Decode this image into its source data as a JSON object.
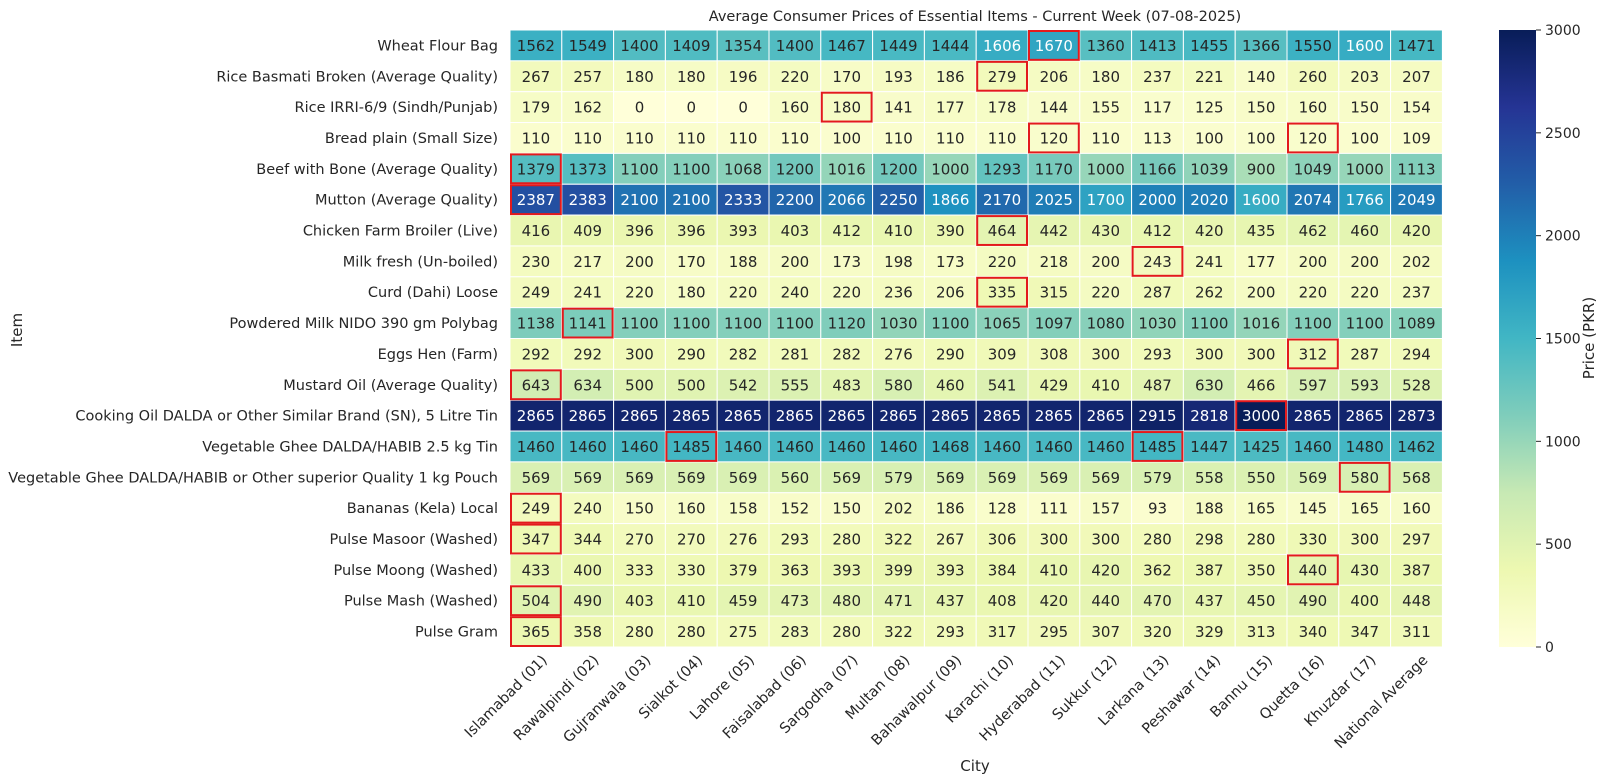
{
  "chart_data": {
    "type": "heatmap",
    "title": "Average Consumer Prices of Essential Items - Current Week (07-08-2025)",
    "xlabel": "City",
    "ylabel": "Item",
    "colorbar_label": "Price (PKR)",
    "color_range": [
      0,
      3000
    ],
    "colorbar_ticks": [
      0,
      500,
      1000,
      1500,
      2000,
      2500,
      3000
    ],
    "colormap": "YlGnBu",
    "highlight_color": "#e31a1c",
    "columns": [
      "Islamabad (01)",
      "Rawalpindi (02)",
      "Gujranwala (03)",
      "Sialkot (04)",
      "Lahore (05)",
      "Faisalabad (06)",
      "Sargodha (07)",
      "Multan (08)",
      "Bahawalpur (09)",
      "Karachi (10)",
      "Hyderabad (11)",
      "Sukkur (12)",
      "Larkana (13)",
      "Peshawar (14)",
      "Bannu (15)",
      "Quetta (16)",
      "Khuzdar (17)",
      "National Average"
    ],
    "rows": [
      {
        "item": "Wheat Flour Bag",
        "values": [
          1562,
          1549,
          1400,
          1409,
          1354,
          1400,
          1467,
          1449,
          1444,
          1606,
          1670,
          1360,
          1413,
          1455,
          1366,
          1550,
          1600,
          1471
        ],
        "highlighted_columns": [
          10
        ]
      },
      {
        "item": "Rice Basmati Broken (Average Quality)",
        "values": [
          267,
          257,
          180,
          180,
          196,
          220,
          170,
          193,
          186,
          279,
          206,
          180,
          237,
          221,
          140,
          260,
          203,
          207
        ],
        "highlighted_columns": [
          9
        ]
      },
      {
        "item": "Rice IRRI-6/9 (Sindh/Punjab)",
        "values": [
          179,
          162,
          0,
          0,
          0,
          160,
          180,
          141,
          177,
          178,
          144,
          155,
          117,
          125,
          150,
          160,
          150,
          154
        ],
        "highlighted_columns": [
          6
        ]
      },
      {
        "item": "Bread plain (Small Size)",
        "values": [
          110,
          110,
          110,
          110,
          110,
          110,
          100,
          110,
          110,
          110,
          120,
          110,
          113,
          100,
          100,
          120,
          100,
          109
        ],
        "highlighted_columns": [
          10,
          15
        ]
      },
      {
        "item": "Beef with Bone (Average Quality)",
        "values": [
          1379,
          1373,
          1100,
          1100,
          1068,
          1200,
          1016,
          1200,
          1000,
          1293,
          1170,
          1000,
          1166,
          1039,
          900,
          1049,
          1000,
          1113
        ],
        "highlighted_columns": [
          0
        ]
      },
      {
        "item": "Mutton (Average Quality)",
        "values": [
          2387,
          2383,
          2100,
          2100,
          2333,
          2200,
          2066,
          2250,
          1866,
          2170,
          2025,
          1700,
          2000,
          2020,
          1600,
          2074,
          1766,
          2049
        ],
        "highlighted_columns": [
          0
        ]
      },
      {
        "item": "Chicken Farm Broiler (Live)",
        "values": [
          416,
          409,
          396,
          396,
          393,
          403,
          412,
          410,
          390,
          464,
          442,
          430,
          412,
          420,
          435,
          462,
          460,
          420
        ],
        "highlighted_columns": [
          9
        ]
      },
      {
        "item": "Milk fresh (Un-boiled)",
        "values": [
          230,
          217,
          200,
          170,
          188,
          200,
          173,
          198,
          173,
          220,
          218,
          200,
          243,
          241,
          177,
          200,
          200,
          202
        ],
        "highlighted_columns": [
          12
        ]
      },
      {
        "item": "Curd (Dahi) Loose",
        "values": [
          249,
          241,
          220,
          180,
          220,
          240,
          220,
          236,
          206,
          335,
          315,
          220,
          287,
          262,
          200,
          220,
          220,
          237
        ],
        "highlighted_columns": [
          9
        ]
      },
      {
        "item": "Powdered Milk NIDO 390 gm Polybag",
        "values": [
          1138,
          1141,
          1100,
          1100,
          1100,
          1100,
          1120,
          1030,
          1100,
          1065,
          1097,
          1080,
          1030,
          1100,
          1016,
          1100,
          1100,
          1089
        ],
        "highlighted_columns": [
          1
        ]
      },
      {
        "item": "Eggs Hen (Farm)",
        "values": [
          292,
          292,
          300,
          290,
          282,
          281,
          282,
          276,
          290,
          309,
          308,
          300,
          293,
          300,
          300,
          312,
          287,
          294
        ],
        "highlighted_columns": [
          15
        ]
      },
      {
        "item": "Mustard Oil (Average Quality)",
        "values": [
          643,
          634,
          500,
          500,
          542,
          555,
          483,
          580,
          460,
          541,
          429,
          410,
          487,
          630,
          466,
          597,
          593,
          528
        ],
        "highlighted_columns": [
          0
        ]
      },
      {
        "item": "Cooking Oil DALDA or Other Similar Brand (SN), 5 Litre Tin",
        "values": [
          2865,
          2865,
          2865,
          2865,
          2865,
          2865,
          2865,
          2865,
          2865,
          2865,
          2865,
          2865,
          2915,
          2818,
          3000,
          2865,
          2865,
          2873
        ],
        "highlighted_columns": [
          14
        ]
      },
      {
        "item": "Vegetable Ghee DALDA/HABIB 2.5 kg Tin",
        "values": [
          1460,
          1460,
          1460,
          1485,
          1460,
          1460,
          1460,
          1460,
          1468,
          1460,
          1460,
          1460,
          1485,
          1447,
          1425,
          1460,
          1480,
          1462
        ],
        "highlighted_columns": [
          3,
          12
        ]
      },
      {
        "item": "Vegetable Ghee DALDA/HABIB or Other superior Quality 1 kg Pouch",
        "values": [
          569,
          569,
          569,
          569,
          569,
          560,
          569,
          579,
          569,
          569,
          569,
          569,
          579,
          558,
          550,
          569,
          580,
          568
        ],
        "highlighted_columns": [
          16
        ]
      },
      {
        "item": "Bananas (Kela) Local",
        "values": [
          249,
          240,
          150,
          160,
          158,
          152,
          150,
          202,
          186,
          128,
          111,
          157,
          93,
          188,
          165,
          145,
          165,
          160
        ],
        "highlighted_columns": [
          0
        ]
      },
      {
        "item": "Pulse Masoor (Washed)",
        "values": [
          347,
          344,
          270,
          270,
          276,
          293,
          280,
          322,
          267,
          306,
          300,
          300,
          280,
          298,
          280,
          330,
          300,
          297
        ],
        "highlighted_columns": [
          0
        ]
      },
      {
        "item": "Pulse Moong (Washed)",
        "values": [
          433,
          400,
          333,
          330,
          379,
          363,
          393,
          399,
          393,
          384,
          410,
          420,
          362,
          387,
          350,
          440,
          430,
          387
        ],
        "highlighted_columns": [
          15
        ]
      },
      {
        "item": "Pulse Mash (Washed)",
        "values": [
          504,
          490,
          403,
          410,
          459,
          473,
          480,
          471,
          437,
          408,
          420,
          440,
          470,
          437,
          450,
          490,
          400,
          448
        ],
        "highlighted_columns": [
          0
        ]
      },
      {
        "item": "Pulse Gram",
        "values": [
          365,
          358,
          280,
          280,
          275,
          283,
          280,
          322,
          293,
          317,
          295,
          307,
          320,
          329,
          313,
          340,
          347,
          311
        ],
        "highlighted_columns": [
          0
        ]
      }
    ]
  }
}
